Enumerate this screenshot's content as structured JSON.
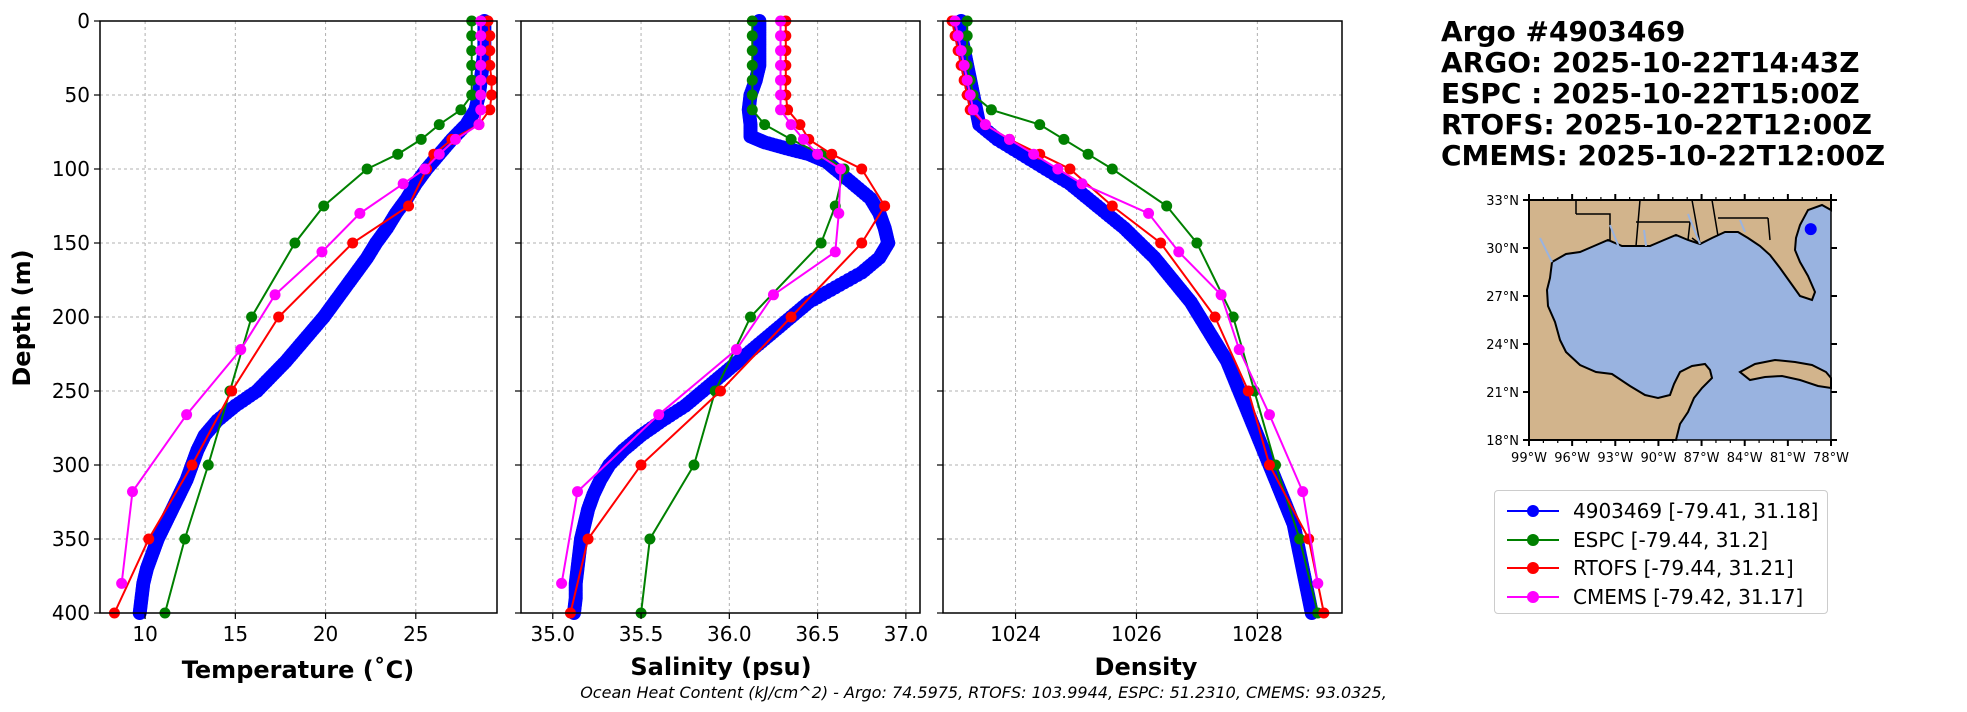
{
  "info": {
    "title": "Argo #4903469",
    "argo_time": "ARGO: 2025-10-22T14:43Z",
    "espc_time": "ESPC : 2025-10-22T15:00Z",
    "rtofs_time": "RTOFS: 2025-10-22T12:00Z",
    "cmems_time": "CMEMS: 2025-10-22T12:00Z"
  },
  "caption": "Ocean Heat Content (kJ/cm^2) - Argo: 74.5975,  RTOFS: 103.9944,  ESPC: 51.2310,  CMEMS: 93.0325,",
  "colors": {
    "argo": "#0000ff",
    "espc": "#008000",
    "rtofs": "#ff0000",
    "cmems": "#ff00ff",
    "land": "#d2b48c",
    "ocean": "#99b3e0"
  },
  "legend": [
    {
      "label": "4903469 [-79.41, 31.18]",
      "color": "#0000ff"
    },
    {
      "label": "ESPC [-79.44, 31.2]",
      "color": "#008000"
    },
    {
      "label": "RTOFS [-79.44, 31.21]",
      "color": "#ff0000"
    },
    {
      "label": "CMEMS [-79.42, 31.17]",
      "color": "#ff00ff"
    }
  ],
  "chart_data": [
    {
      "type": "line",
      "title": "",
      "xlabel": "Temperature (˚C)",
      "ylabel": "Depth (m)",
      "xlim": [
        7.5,
        29.5
      ],
      "ylim": [
        400,
        0
      ],
      "xticks": [
        10,
        15,
        20,
        25
      ],
      "yticks": [
        0,
        50,
        100,
        150,
        200,
        250,
        300,
        350,
        400
      ],
      "grid": true,
      "series": [
        {
          "name": "4903469",
          "color": "#0000ff",
          "dense": true,
          "depth": [
            0,
            10,
            20,
            30,
            40,
            50,
            60,
            70,
            80,
            90,
            100,
            110,
            120,
            130,
            140,
            150,
            160,
            170,
            180,
            190,
            200,
            210,
            220,
            230,
            240,
            250,
            260,
            270,
            280,
            290,
            300,
            310,
            320,
            330,
            340,
            350,
            360,
            370,
            380,
            390,
            400
          ],
          "values": [
            28.8,
            28.8,
            28.8,
            28.7,
            28.6,
            28.5,
            28.3,
            27.8,
            27.0,
            26.3,
            25.6,
            25.0,
            24.5,
            23.9,
            23.4,
            22.8,
            22.3,
            21.7,
            21.1,
            20.5,
            19.9,
            19.2,
            18.5,
            17.8,
            17.0,
            16.2,
            15.0,
            14.0,
            13.3,
            12.9,
            12.6,
            12.3,
            11.9,
            11.5,
            11.1,
            10.7,
            10.4,
            10.1,
            9.9,
            9.8,
            9.7
          ]
        },
        {
          "name": "ESPC",
          "color": "#008000",
          "depth": [
            0,
            10,
            20,
            30,
            40,
            50,
            60,
            70,
            80,
            90,
            100,
            125,
            150,
            200,
            250,
            300,
            350,
            400
          ],
          "values": [
            28.1,
            28.1,
            28.1,
            28.1,
            28.1,
            28.1,
            27.5,
            26.3,
            25.3,
            24.0,
            22.3,
            19.9,
            18.3,
            15.9,
            14.7,
            13.5,
            12.2,
            11.1
          ]
        },
        {
          "name": "RTOFS",
          "color": "#ff0000",
          "depth": [
            0,
            10,
            20,
            30,
            40,
            50,
            60,
            70,
            80,
            90,
            100,
            125,
            150,
            200,
            250,
            300,
            350,
            400
          ],
          "values": [
            29.0,
            29.1,
            29.1,
            29.1,
            29.2,
            29.2,
            29.1,
            28.5,
            27.0,
            26.0,
            25.6,
            24.6,
            21.5,
            17.4,
            14.8,
            12.6,
            10.2,
            8.3
          ]
        },
        {
          "name": "CMEMS",
          "color": "#ff00ff",
          "depth": [
            0,
            10,
            20,
            30,
            40,
            50,
            60,
            70,
            80,
            90,
            100,
            110,
            130,
            156,
            185,
            222,
            266,
            318,
            380
          ],
          "values": [
            28.6,
            28.6,
            28.6,
            28.6,
            28.6,
            28.6,
            28.6,
            28.5,
            27.2,
            26.3,
            25.5,
            24.3,
            21.9,
            19.8,
            17.2,
            15.3,
            12.3,
            9.3,
            8.7
          ]
        }
      ]
    },
    {
      "type": "line",
      "title": "",
      "xlabel": "Salinity (psu)",
      "ylabel": "",
      "xlim": [
        34.82,
        37.08
      ],
      "ylim": [
        400,
        0
      ],
      "xticks": [
        35.0,
        35.5,
        36.0,
        36.5,
        37.0
      ],
      "yticks": [
        0,
        50,
        100,
        150,
        200,
        250,
        300,
        350,
        400
      ],
      "grid": true,
      "series": [
        {
          "name": "4903469",
          "color": "#0000ff",
          "dense": true,
          "depth": [
            0,
            10,
            20,
            30,
            40,
            50,
            60,
            70,
            78,
            82,
            86,
            90,
            95,
            100,
            110,
            120,
            130,
            140,
            150,
            160,
            170,
            180,
            190,
            200,
            210,
            220,
            230,
            240,
            250,
            260,
            270,
            280,
            290,
            300,
            310,
            320,
            330,
            340,
            350,
            360,
            370,
            380,
            390,
            400
          ],
          "values": [
            36.17,
            36.17,
            36.17,
            36.17,
            36.15,
            36.12,
            36.11,
            36.12,
            36.12,
            36.2,
            36.32,
            36.45,
            36.55,
            36.6,
            36.7,
            36.8,
            36.85,
            36.88,
            36.9,
            36.85,
            36.75,
            36.6,
            36.45,
            36.35,
            36.25,
            36.15,
            36.05,
            35.95,
            35.85,
            35.75,
            35.62,
            35.5,
            35.4,
            35.32,
            35.27,
            35.23,
            35.2,
            35.18,
            35.16,
            35.15,
            35.14,
            35.13,
            35.13,
            35.12
          ]
        },
        {
          "name": "ESPC",
          "color": "#008000",
          "depth": [
            0,
            10,
            20,
            30,
            40,
            50,
            60,
            70,
            80,
            90,
            100,
            125,
            150,
            200,
            250,
            300,
            350,
            400
          ],
          "values": [
            36.13,
            36.13,
            36.13,
            36.13,
            36.13,
            36.13,
            36.13,
            36.2,
            36.35,
            36.52,
            36.65,
            36.6,
            36.52,
            36.12,
            35.92,
            35.8,
            35.55,
            35.5
          ]
        },
        {
          "name": "RTOFS",
          "color": "#ff0000",
          "depth": [
            0,
            10,
            20,
            30,
            40,
            50,
            60,
            70,
            80,
            90,
            100,
            125,
            150,
            200,
            250,
            300,
            350,
            400
          ],
          "values": [
            36.32,
            36.32,
            36.32,
            36.32,
            36.32,
            36.32,
            36.33,
            36.4,
            36.45,
            36.58,
            36.75,
            36.88,
            36.75,
            36.35,
            35.95,
            35.5,
            35.2,
            35.1
          ]
        },
        {
          "name": "CMEMS",
          "color": "#ff00ff",
          "depth": [
            0,
            10,
            20,
            30,
            40,
            50,
            60,
            70,
            80,
            90,
            100,
            130,
            156,
            185,
            222,
            266,
            318,
            380
          ],
          "values": [
            36.29,
            36.29,
            36.29,
            36.29,
            36.29,
            36.29,
            36.29,
            36.35,
            36.42,
            36.5,
            36.63,
            36.62,
            36.6,
            36.25,
            36.04,
            35.6,
            35.14,
            35.05
          ]
        }
      ]
    },
    {
      "type": "line",
      "title": "",
      "xlabel": "Density",
      "ylabel": "",
      "xlim": [
        1022.8,
        1029.4
      ],
      "ylim": [
        400,
        0
      ],
      "xticks": [
        1024,
        1026,
        1028
      ],
      "yticks": [
        0,
        50,
        100,
        150,
        200,
        250,
        300,
        350,
        400
      ],
      "grid": true,
      "series": [
        {
          "name": "4903469",
          "color": "#0000ff",
          "dense": true,
          "depth": [
            0,
            10,
            20,
            30,
            40,
            50,
            60,
            70,
            80,
            90,
            100,
            110,
            120,
            130,
            140,
            150,
            160,
            170,
            180,
            190,
            200,
            210,
            220,
            230,
            240,
            250,
            260,
            270,
            280,
            290,
            300,
            310,
            320,
            330,
            340,
            350,
            360,
            370,
            380,
            390,
            400
          ],
          "values": [
            1023.1,
            1023.1,
            1023.15,
            1023.2,
            1023.25,
            1023.3,
            1023.35,
            1023.4,
            1023.7,
            1024.1,
            1024.5,
            1024.9,
            1025.2,
            1025.5,
            1025.8,
            1026.05,
            1026.3,
            1026.5,
            1026.7,
            1026.9,
            1027.05,
            1027.2,
            1027.35,
            1027.5,
            1027.6,
            1027.7,
            1027.8,
            1027.9,
            1028.0,
            1028.1,
            1028.2,
            1028.3,
            1028.4,
            1028.5,
            1028.6,
            1028.65,
            1028.7,
            1028.75,
            1028.8,
            1028.85,
            1028.9
          ]
        },
        {
          "name": "ESPC",
          "color": "#008000",
          "depth": [
            0,
            10,
            20,
            30,
            40,
            50,
            60,
            70,
            80,
            90,
            100,
            125,
            150,
            200,
            250,
            300,
            350,
            400
          ],
          "values": [
            1023.2,
            1023.2,
            1023.2,
            1023.2,
            1023.25,
            1023.3,
            1023.6,
            1024.4,
            1024.8,
            1025.2,
            1025.6,
            1026.5,
            1027.0,
            1027.6,
            1027.95,
            1028.3,
            1028.7,
            1029.0
          ]
        },
        {
          "name": "RTOFS",
          "color": "#ff0000",
          "depth": [
            0,
            10,
            20,
            30,
            40,
            50,
            60,
            70,
            80,
            90,
            100,
            125,
            150,
            200,
            250,
            300,
            350,
            400
          ],
          "values": [
            1022.95,
            1023.0,
            1023.05,
            1023.1,
            1023.15,
            1023.2,
            1023.25,
            1023.5,
            1023.9,
            1024.4,
            1024.9,
            1025.6,
            1026.4,
            1027.3,
            1027.85,
            1028.2,
            1028.85,
            1029.1
          ]
        },
        {
          "name": "CMEMS",
          "color": "#ff00ff",
          "depth": [
            0,
            10,
            20,
            30,
            40,
            50,
            60,
            70,
            80,
            90,
            100,
            110,
            130,
            156,
            185,
            222,
            266,
            318,
            380
          ],
          "values": [
            1023.0,
            1023.05,
            1023.1,
            1023.15,
            1023.2,
            1023.25,
            1023.3,
            1023.5,
            1023.9,
            1024.3,
            1024.7,
            1025.1,
            1026.2,
            1026.7,
            1027.4,
            1027.7,
            1028.2,
            1028.75,
            1029.0
          ]
        }
      ]
    }
  ],
  "map": {
    "lon_ticks": [
      "99°W",
      "96°W",
      "93°W",
      "90°W",
      "87°W",
      "84°W",
      "81°W",
      "78°W"
    ],
    "lat_ticks": [
      "33°N",
      "30°N",
      "27°N",
      "24°N",
      "21°N",
      "18°N"
    ],
    "lon_range": [
      -99,
      -78
    ],
    "lat_range": [
      18,
      33
    ],
    "float_lon": -79.41,
    "float_lat": 31.18
  }
}
